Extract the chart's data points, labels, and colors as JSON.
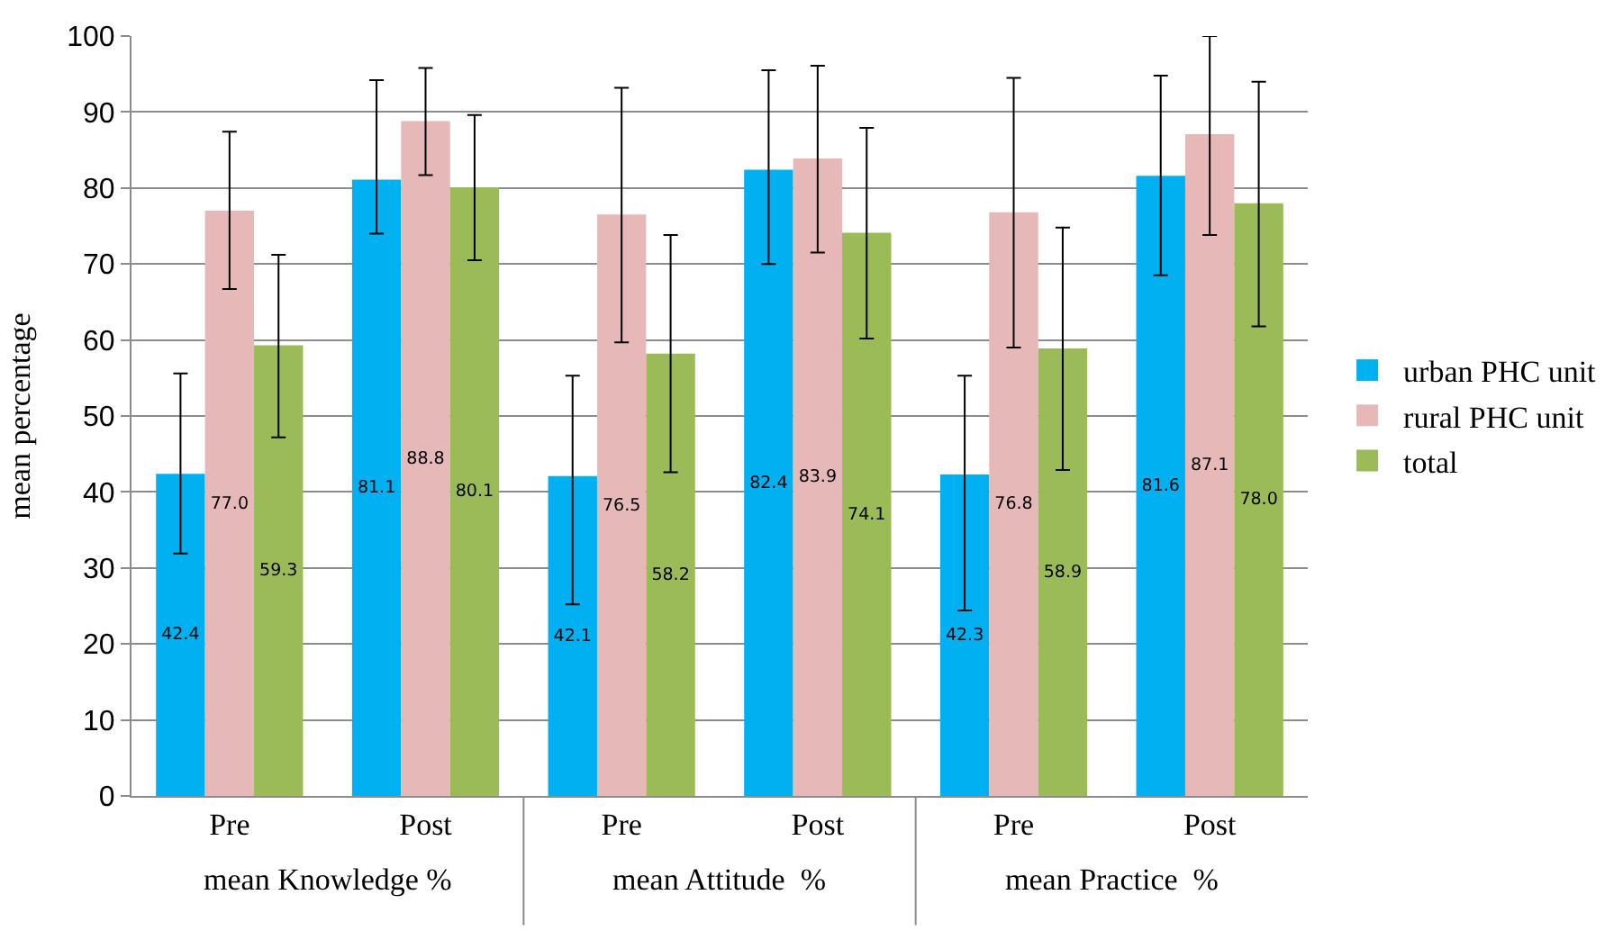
{
  "chart_data": {
    "type": "bar",
    "ylabel": "mean percentage",
    "categories": [
      "Pre",
      "Post",
      "Pre",
      "Post",
      "Pre",
      "Post"
    ],
    "annotations": [
      "mean Knowledge %",
      "mean Attitude  %",
      "mean Practice  %"
    ],
    "series": [
      {
        "name": "urban PHC unit",
        "color": "#00b0f0",
        "values": [
          42.4,
          81.1,
          42.1,
          82.4,
          42.3,
          81.6
        ],
        "value_labels": [
          "42.4",
          "81.1",
          "42.1",
          "82.4",
          "42.3",
          "81.6"
        ],
        "errors": [
          [
            31.9,
            55.6
          ],
          [
            74.0,
            94.2
          ],
          [
            25.2,
            55.3
          ],
          [
            70.0,
            95.5
          ],
          [
            24.4,
            55.3
          ],
          [
            68.5,
            94.8
          ]
        ]
      },
      {
        "name": "rural PHC unit",
        "color": "#e6b9b8",
        "values": [
          77.0,
          88.8,
          76.5,
          83.9,
          76.8,
          87.1
        ],
        "value_labels": [
          "77.0",
          "88.8",
          "76.5",
          "83.9",
          "76.8",
          "87.1"
        ],
        "errors": [
          [
            66.7,
            87.4
          ],
          [
            81.7,
            95.8
          ],
          [
            59.7,
            93.2
          ],
          [
            71.5,
            96.1
          ],
          [
            59.0,
            94.5
          ],
          [
            73.8,
            100
          ]
        ]
      },
      {
        "name": "total",
        "color": "#9bbb59",
        "values": [
          59.3,
          80.1,
          58.2,
          74.1,
          58.9,
          78.0
        ],
        "value_labels": [
          "59.3",
          "80.1",
          "58.2",
          "74.1",
          "58.9",
          "78.0"
        ],
        "errors": [
          [
            47.2,
            71.2
          ],
          [
            70.5,
            89.6
          ],
          [
            42.6,
            73.8
          ],
          [
            60.2,
            87.9
          ],
          [
            42.9,
            74.8
          ],
          [
            61.8,
            94.0
          ]
        ]
      }
    ],
    "ylim": [
      0,
      100
    ],
    "yticks": [
      0,
      10,
      20,
      30,
      40,
      50,
      60,
      70,
      80,
      90,
      100
    ],
    "grid": "y",
    "legend": "right"
  }
}
